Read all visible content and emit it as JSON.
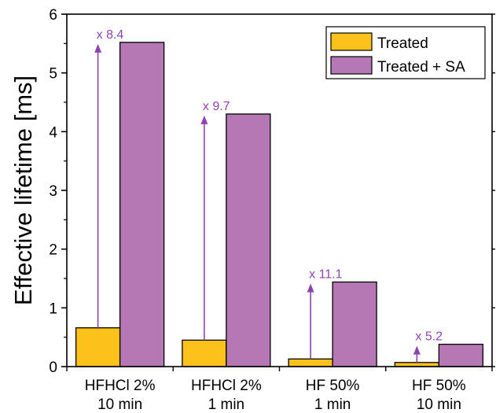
{
  "colors": {
    "treated": "#FCC21B",
    "treated_sa": "#B678B4",
    "annotation": "#8E44AD",
    "axis": "#000000"
  },
  "chart_data": {
    "type": "bar",
    "title": "",
    "xlabel": "",
    "ylabel": "Effective lifetime [ms]",
    "ylim": [
      0,
      6
    ],
    "yticks": [
      "0",
      "1",
      "2",
      "3",
      "4",
      "5",
      "6"
    ],
    "categories": [
      [
        "HFHCl 2%",
        "10 min"
      ],
      [
        "HFHCl 2%",
        "1 min"
      ],
      [
        "HF 50%",
        "1 min"
      ],
      [
        "HF 50%",
        "10 min"
      ]
    ],
    "series": [
      {
        "name": "Treated",
        "values": [
          0.66,
          0.45,
          0.13,
          0.07
        ]
      },
      {
        "name": "Treated + SA",
        "values": [
          5.52,
          4.3,
          1.44,
          0.38
        ]
      }
    ],
    "annotations": [
      "x 8.4",
      "x 9.7",
      "x 11.1",
      "x 5.2"
    ],
    "legend_position": "top-right"
  }
}
